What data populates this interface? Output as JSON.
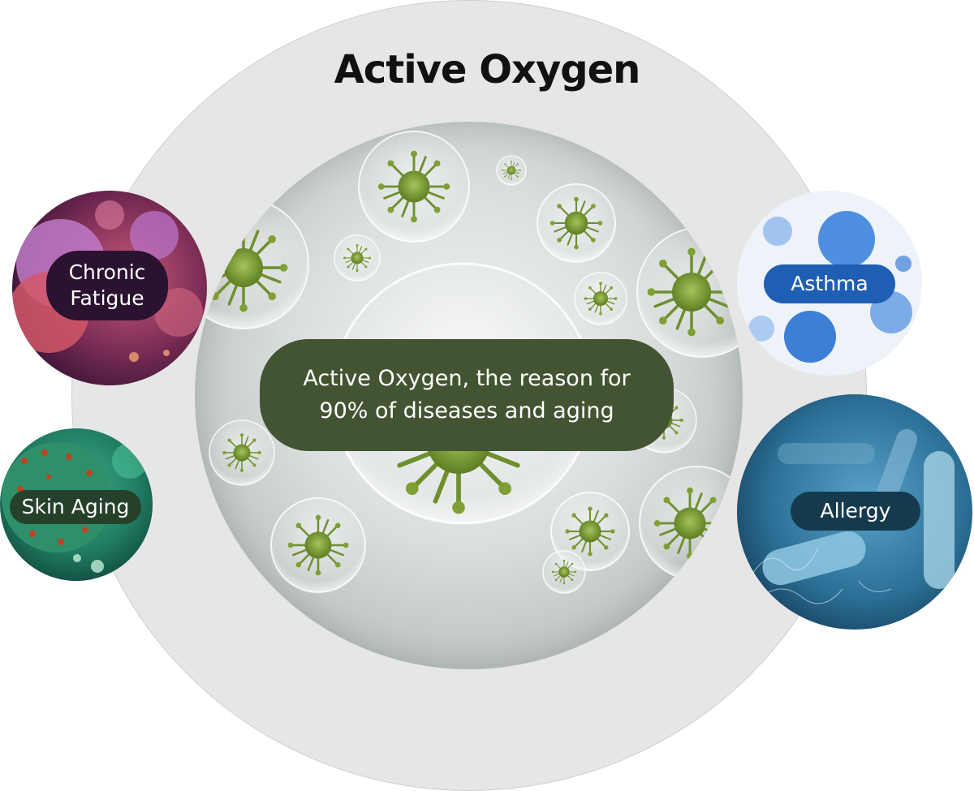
{
  "title": "Active Oxygen",
  "center": {
    "line1": "Active Oxygen, the reason for",
    "line2": "90% of diseases and aging"
  },
  "conditions": {
    "chronic_fatigue": {
      "line1": "Chronic",
      "line2": "Fatigue"
    },
    "skin_aging": {
      "label": "Skin Aging"
    },
    "asthma": {
      "label": "Asthma"
    },
    "allergy": {
      "label": "Allergy"
    }
  },
  "colors": {
    "outer_circle": "#e6e6e6",
    "center_label_bg": "#435432",
    "chronic_fatigue_pill": "#2a1230",
    "skin_aging_pill": "#26412b",
    "asthma_pill": "#1f5fb3",
    "allergy_pill": "#163a4d",
    "virus_green": "#7a9a3a"
  }
}
